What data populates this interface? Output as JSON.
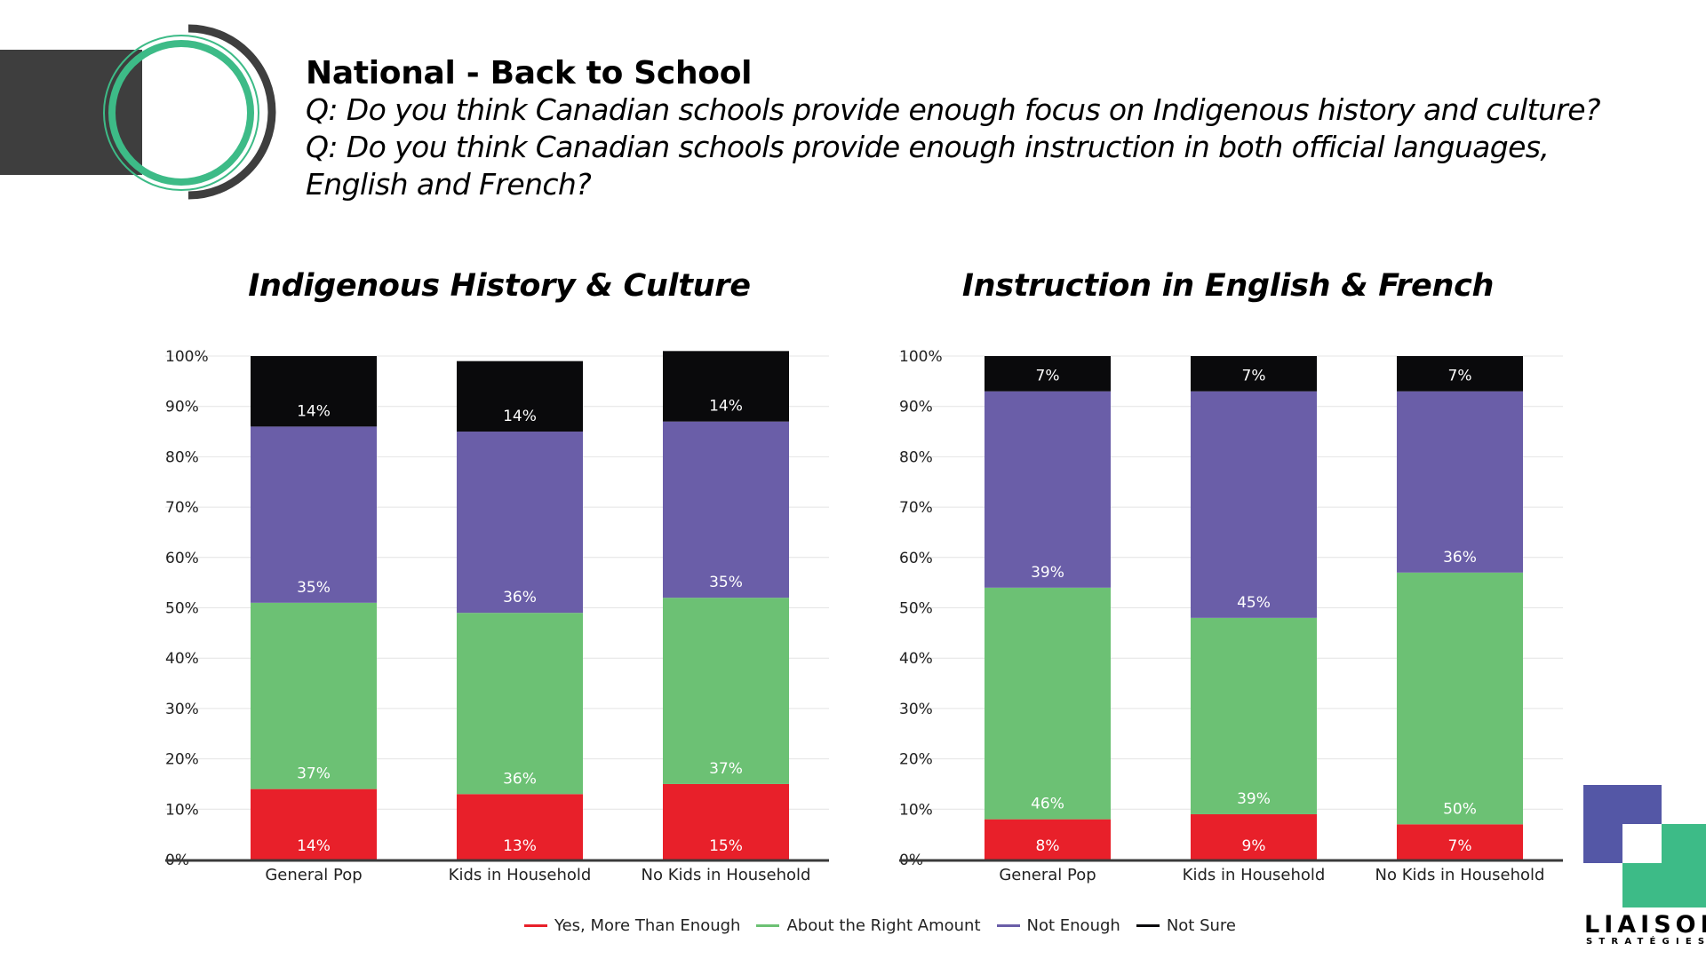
{
  "header": {
    "title": "National - Back to School",
    "question_1": "Q: Do you think Canadian schools provide enough focus on Indigenous history and culture?",
    "question_2_line1": "Q: Do you think Canadian schools provide enough instruction in both official languages,",
    "question_2_line2": "English and French?"
  },
  "colors": {
    "yes": "#e8202a",
    "right": "#6cc174",
    "not_enough": "#6a5ea8",
    "not_sure": "#0a0a0c",
    "ring_green": "#3dbb87",
    "ring_dark": "#3e3e3e",
    "logo_purple": "#5457a6",
    "logo_green": "#3dbb87"
  },
  "chart_data": [
    {
      "type": "bar",
      "stacked": true,
      "title": "Indigenous History & Culture",
      "categories": [
        "General Pop",
        "Kids in Household",
        "No Kids in Household"
      ],
      "series": [
        {
          "name": "Yes, More Than Enough",
          "values": [
            14,
            13,
            15
          ],
          "labels": [
            "14%",
            "13%",
            "15%"
          ]
        },
        {
          "name": "About the Right Amount",
          "values": [
            37,
            36,
            37
          ],
          "labels": [
            "37%",
            "36%",
            "37%"
          ]
        },
        {
          "name": "Not Enough",
          "values": [
            35,
            36,
            35
          ],
          "labels": [
            "35%",
            "36%",
            "35%"
          ]
        },
        {
          "name": "Not Sure",
          "values": [
            14,
            14,
            14
          ],
          "labels": [
            "14%",
            "14%",
            "14%"
          ]
        }
      ],
      "ylim": [
        0,
        100
      ],
      "yticks": [
        "0%",
        "10%",
        "20%",
        "30%",
        "40%",
        "50%",
        "60%",
        "70%",
        "80%",
        "90%",
        "100%"
      ],
      "grid": true
    },
    {
      "type": "bar",
      "stacked": true,
      "title": "Instruction in English & French",
      "categories": [
        "General Pop",
        "Kids in Household",
        "No Kids in Household"
      ],
      "series": [
        {
          "name": "Yes, More Than Enough",
          "values": [
            8,
            9,
            7
          ],
          "labels": [
            "8%",
            "9%",
            "7%"
          ]
        },
        {
          "name": "About the Right Amount",
          "values": [
            46,
            39,
            50
          ],
          "labels": [
            "46%",
            "39%",
            "50%"
          ]
        },
        {
          "name": "Not Enough",
          "values": [
            39,
            45,
            36
          ],
          "labels": [
            "39%",
            "45%",
            "36%"
          ]
        },
        {
          "name": "Not Sure",
          "values": [
            7,
            7,
            7
          ],
          "labels": [
            "7%",
            "7%",
            "7%"
          ]
        }
      ],
      "ylim": [
        0,
        100
      ],
      "yticks": [
        "0%",
        "10%",
        "20%",
        "30%",
        "40%",
        "50%",
        "60%",
        "70%",
        "80%",
        "90%",
        "100%"
      ],
      "grid": true
    }
  ],
  "legend": {
    "items": [
      "Yes, More Than Enough",
      "About the Right Amount",
      "Not Enough",
      "Not Sure"
    ],
    "position": "bottom-center"
  },
  "logo": {
    "name": "LIAISON",
    "subtitle": "STRATÉGIES"
  }
}
